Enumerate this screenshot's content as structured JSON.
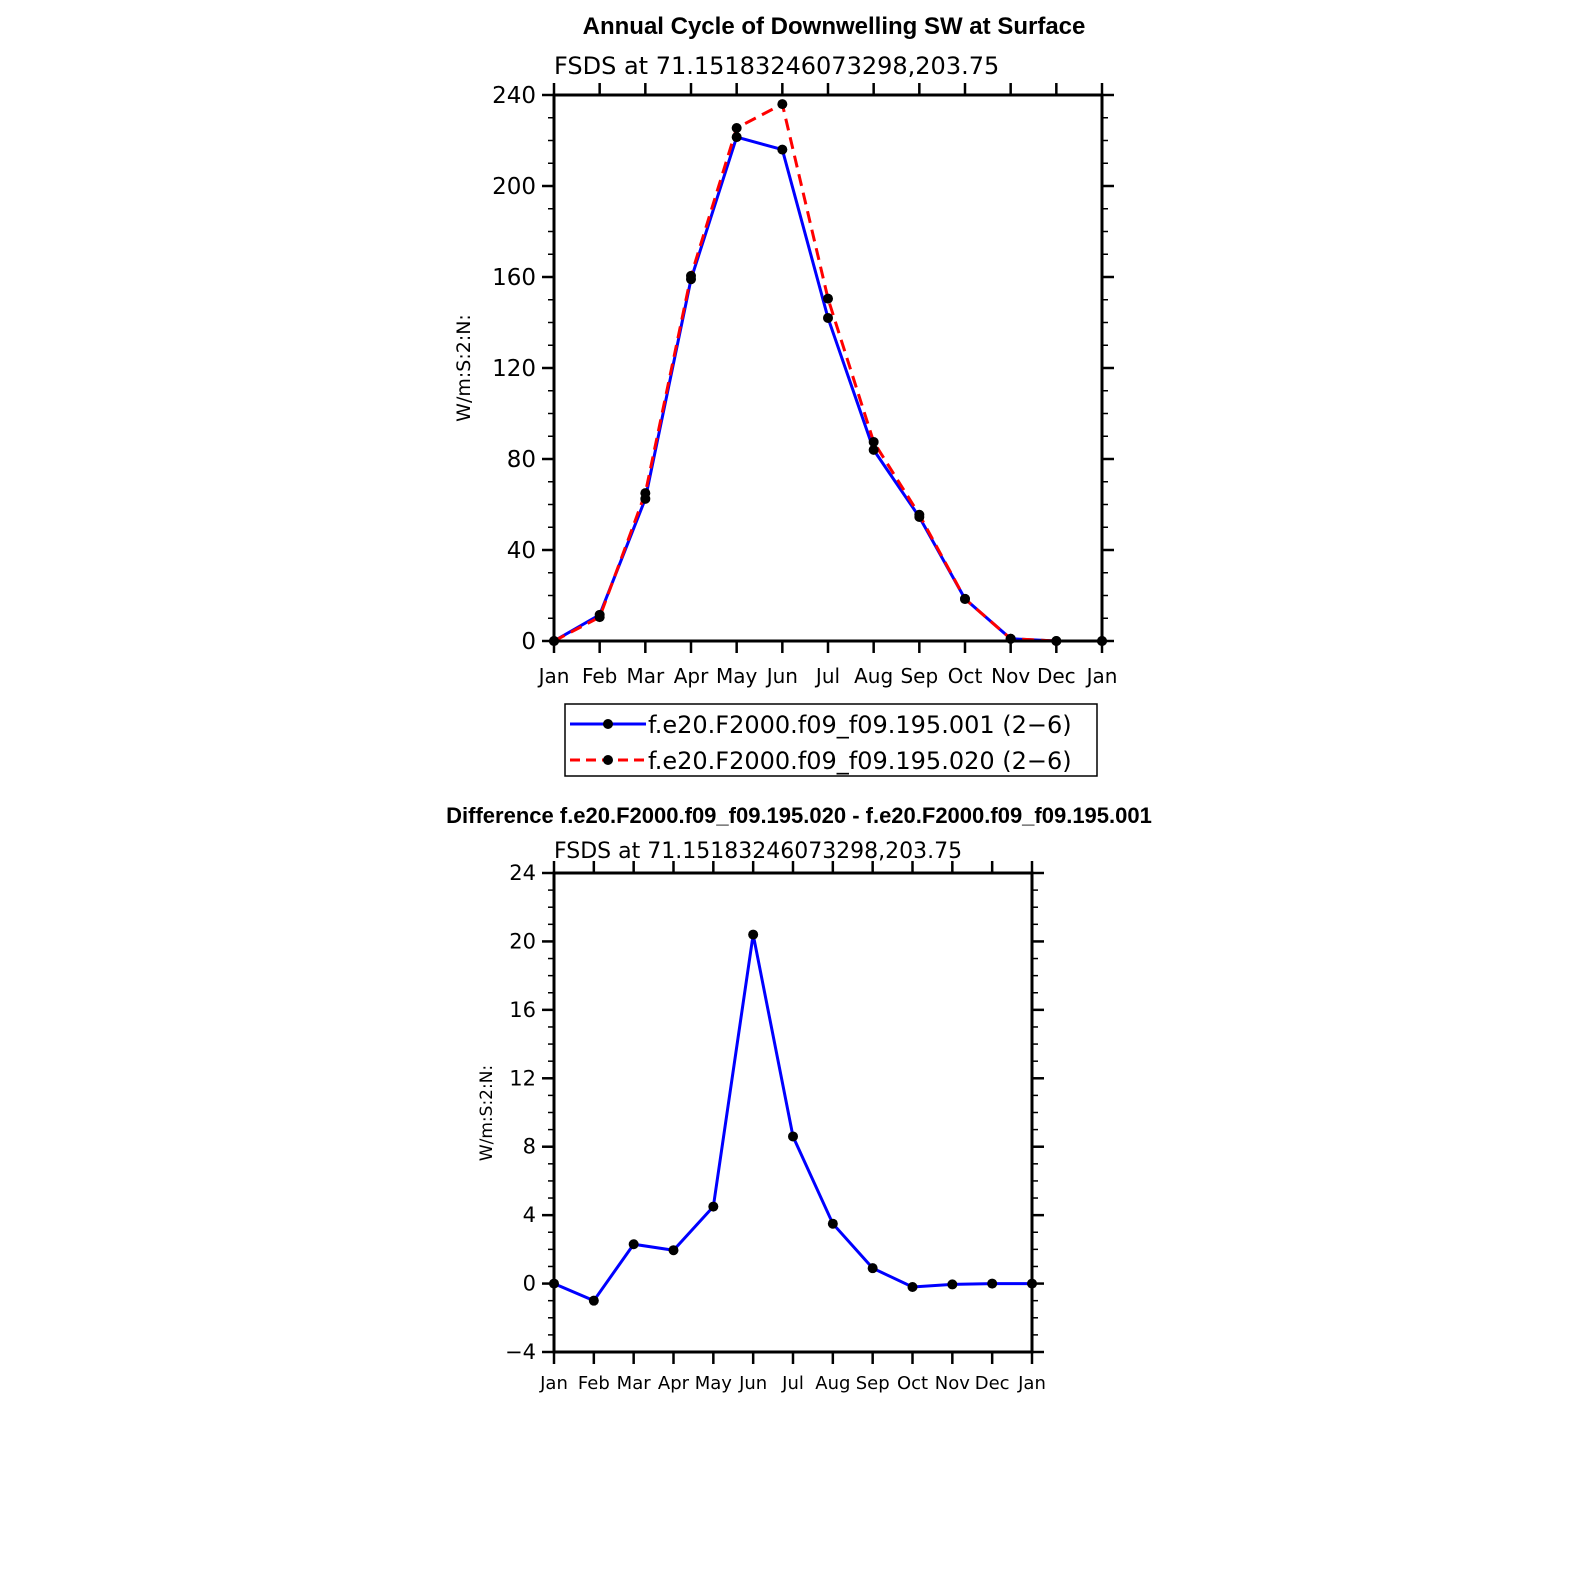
{
  "chart_data": [
    {
      "type": "line",
      "title": "Annual Cycle of Downwelling SW at Surface",
      "subtitle": "FSDS at 71.15183246073298,203.75",
      "ylabel": "W/m:S:2:N:",
      "xlabel": "",
      "categories": [
        "Jan",
        "Feb",
        "Mar",
        "Apr",
        "May",
        "Jun",
        "Jul",
        "Aug",
        "Sep",
        "Oct",
        "Nov",
        "Dec",
        "Jan"
      ],
      "ylim": [
        0,
        240
      ],
      "yticks": [
        "0",
        "40",
        "80",
        "120",
        "160",
        "200",
        "240"
      ],
      "grid": false,
      "legend_position": "bottom",
      "series": [
        {
          "name": "f.e20.F2000.f09_f09.195.001 (2−6)",
          "color": "#0000ff",
          "dash": "solid",
          "values": [
            0,
            11.5,
            62.5,
            159,
            221.5,
            216,
            142,
            84,
            54.5,
            18.5,
            1,
            0,
            0
          ]
        },
        {
          "name": "f.e20.F2000.f09_f09.195.020 (2−6)",
          "color": "#ff0000",
          "dash": "dashed",
          "values": [
            0,
            10.5,
            65,
            160.5,
            225.5,
            236,
            150.5,
            87.5,
            55.5,
            18.5,
            1,
            0,
            0
          ]
        }
      ]
    },
    {
      "type": "line",
      "title": "Difference f.e20.F2000.f09_f09.195.020 - f.e20.F2000.f09_f09.195.001",
      "subtitle": "FSDS at 71.15183246073298,203.75",
      "ylabel": "W/m:S:2:N:",
      "xlabel": "",
      "categories": [
        "Jan",
        "Feb",
        "Mar",
        "Apr",
        "May",
        "Jun",
        "Jul",
        "Aug",
        "Sep",
        "Oct",
        "Nov",
        "Dec",
        "Jan"
      ],
      "ylim": [
        -4,
        24
      ],
      "yticks": [
        "−4",
        "0",
        "4",
        "8",
        "12",
        "16",
        "20",
        "24"
      ],
      "grid": false,
      "series": [
        {
          "color": "#0000ff",
          "dash": "solid",
          "values": [
            0,
            -1,
            2.3,
            1.95,
            4.5,
            20.4,
            8.6,
            3.5,
            0.9,
            -0.2,
            -0.05,
            0,
            0
          ]
        }
      ]
    }
  ]
}
